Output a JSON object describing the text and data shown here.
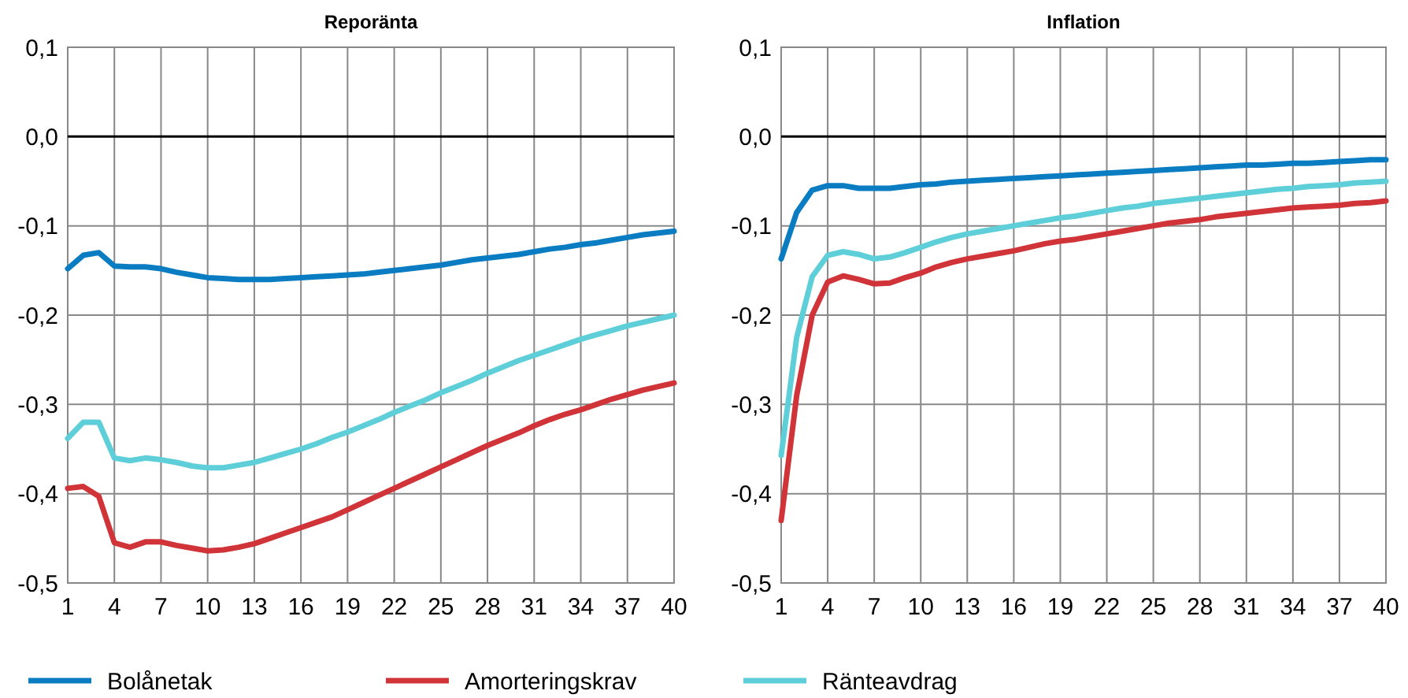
{
  "chart_data": [
    {
      "type": "line",
      "title": "Reporänta",
      "x": [
        1,
        2,
        3,
        4,
        5,
        6,
        7,
        8,
        9,
        10,
        11,
        12,
        13,
        14,
        15,
        16,
        17,
        18,
        19,
        20,
        21,
        22,
        23,
        24,
        25,
        26,
        27,
        28,
        29,
        30,
        31,
        32,
        33,
        34,
        35,
        36,
        37,
        38,
        39,
        40
      ],
      "xlim": [
        1,
        40
      ],
      "xticks": [
        1,
        4,
        7,
        10,
        13,
        16,
        19,
        22,
        25,
        28,
        31,
        34,
        37,
        40
      ],
      "ylim": [
        -0.5,
        0.1
      ],
      "yticks": [
        {
          "value": -0.5,
          "label": "-0,5"
        },
        {
          "value": -0.4,
          "label": "-0,4"
        },
        {
          "value": -0.3,
          "label": "-0,3"
        },
        {
          "value": -0.2,
          "label": "-0,2"
        },
        {
          "value": -0.1,
          "label": "-0,1"
        },
        {
          "value": 0,
          "label": "0,0"
        },
        {
          "value": 0.1,
          "label": "0,1"
        }
      ],
      "grid": true,
      "legend": "bottom",
      "ref_lines": [
        {
          "axis": "y",
          "value": 0,
          "color": "#000000"
        }
      ],
      "series": [
        {
          "name": "Bolånetak",
          "color": "#0a7cc1",
          "values": [
            -0.148,
            -0.133,
            -0.13,
            -0.145,
            -0.146,
            -0.146,
            -0.148,
            -0.152,
            -0.155,
            -0.158,
            -0.159,
            -0.16,
            -0.16,
            -0.16,
            -0.159,
            -0.158,
            -0.157,
            -0.156,
            -0.155,
            -0.154,
            -0.152,
            -0.15,
            -0.148,
            -0.146,
            -0.144,
            -0.141,
            -0.138,
            -0.136,
            -0.134,
            -0.132,
            -0.129,
            -0.126,
            -0.124,
            -0.121,
            -0.119,
            -0.116,
            -0.113,
            -0.11,
            -0.108,
            -0.106
          ]
        },
        {
          "name": "Amorteringskrav",
          "color": "#d13438",
          "values": [
            -0.394,
            -0.392,
            -0.403,
            -0.455,
            -0.46,
            -0.454,
            -0.454,
            -0.458,
            -0.461,
            -0.464,
            -0.463,
            -0.46,
            -0.456,
            -0.45,
            -0.444,
            -0.438,
            -0.432,
            -0.426,
            -0.418,
            -0.41,
            -0.402,
            -0.394,
            -0.386,
            -0.378,
            -0.37,
            -0.362,
            -0.354,
            -0.346,
            -0.339,
            -0.332,
            -0.324,
            -0.317,
            -0.311,
            -0.306,
            -0.3,
            -0.294,
            -0.289,
            -0.284,
            -0.28,
            -0.276
          ]
        },
        {
          "name": "Ränteavdrag",
          "color": "#5ecfd8",
          "values": [
            -0.338,
            -0.32,
            -0.32,
            -0.36,
            -0.363,
            -0.36,
            -0.362,
            -0.365,
            -0.369,
            -0.371,
            -0.371,
            -0.368,
            -0.365,
            -0.36,
            -0.355,
            -0.35,
            -0.344,
            -0.337,
            -0.331,
            -0.324,
            -0.317,
            -0.309,
            -0.302,
            -0.295,
            -0.287,
            -0.28,
            -0.273,
            -0.265,
            -0.258,
            -0.251,
            -0.245,
            -0.239,
            -0.233,
            -0.227,
            -0.222,
            -0.217,
            -0.212,
            -0.208,
            -0.204,
            -0.2
          ]
        }
      ]
    },
    {
      "type": "line",
      "title": "Inflation",
      "x": [
        1,
        2,
        3,
        4,
        5,
        6,
        7,
        8,
        9,
        10,
        11,
        12,
        13,
        14,
        15,
        16,
        17,
        18,
        19,
        20,
        21,
        22,
        23,
        24,
        25,
        26,
        27,
        28,
        29,
        30,
        31,
        32,
        33,
        34,
        35,
        36,
        37,
        38,
        39,
        40
      ],
      "xlim": [
        1,
        40
      ],
      "xticks": [
        1,
        4,
        7,
        10,
        13,
        16,
        19,
        22,
        25,
        28,
        31,
        34,
        37,
        40
      ],
      "ylim": [
        -0.5,
        0.1
      ],
      "yticks": [
        {
          "value": -0.5,
          "label": "-0,5"
        },
        {
          "value": -0.4,
          "label": "-0,4"
        },
        {
          "value": -0.3,
          "label": "-0,3"
        },
        {
          "value": -0.2,
          "label": "-0,2"
        },
        {
          "value": -0.1,
          "label": "-0,1"
        },
        {
          "value": 0,
          "label": "0,0"
        },
        {
          "value": 0.1,
          "label": "0,1"
        }
      ],
      "grid": true,
      "ref_lines": [
        {
          "axis": "y",
          "value": 0,
          "color": "#000000"
        }
      ],
      "series": [
        {
          "color": "#0a7cc1",
          "values": [
            -0.137,
            -0.085,
            -0.06,
            -0.055,
            -0.055,
            -0.058,
            -0.058,
            -0.058,
            -0.056,
            -0.054,
            -0.053,
            -0.051,
            -0.05,
            -0.049,
            -0.048,
            -0.047,
            -0.046,
            -0.045,
            -0.044,
            -0.043,
            -0.042,
            -0.041,
            -0.04,
            -0.039,
            -0.038,
            -0.037,
            -0.036,
            -0.035,
            -0.034,
            -0.033,
            -0.032,
            -0.032,
            -0.031,
            -0.03,
            -0.03,
            -0.029,
            -0.028,
            -0.027,
            -0.026,
            -0.026
          ]
        },
        {
          "color": "#d13438",
          "values": [
            -0.43,
            -0.29,
            -0.2,
            -0.163,
            -0.156,
            -0.16,
            -0.165,
            -0.164,
            -0.158,
            -0.153,
            -0.146,
            -0.141,
            -0.137,
            -0.134,
            -0.131,
            -0.128,
            -0.124,
            -0.12,
            -0.117,
            -0.115,
            -0.112,
            -0.109,
            -0.106,
            -0.103,
            -0.1,
            -0.097,
            -0.095,
            -0.093,
            -0.09,
            -0.088,
            -0.086,
            -0.084,
            -0.082,
            -0.08,
            -0.079,
            -0.078,
            -0.077,
            -0.075,
            -0.074,
            -0.072
          ]
        },
        {
          "color": "#5ecfd8",
          "values": [
            -0.357,
            -0.225,
            -0.157,
            -0.133,
            -0.129,
            -0.132,
            -0.137,
            -0.135,
            -0.13,
            -0.124,
            -0.118,
            -0.113,
            -0.109,
            -0.106,
            -0.103,
            -0.1,
            -0.097,
            -0.094,
            -0.091,
            -0.089,
            -0.086,
            -0.083,
            -0.08,
            -0.078,
            -0.075,
            -0.073,
            -0.071,
            -0.069,
            -0.067,
            -0.065,
            -0.063,
            -0.061,
            -0.059,
            -0.058,
            -0.056,
            -0.055,
            -0.054,
            -0.052,
            -0.051,
            -0.05
          ]
        }
      ]
    }
  ]
}
